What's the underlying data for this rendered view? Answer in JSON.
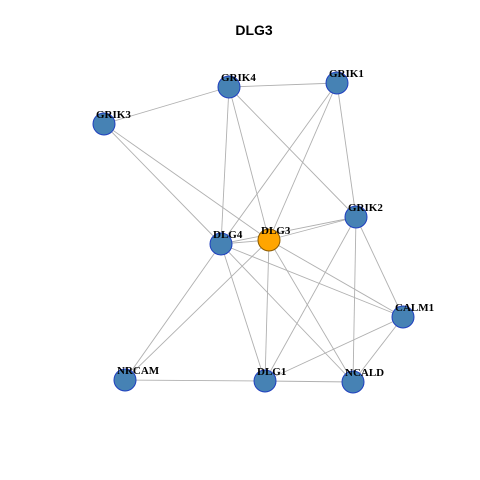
{
  "title": "DLG3",
  "nodes": [
    {
      "label": "GRIK4"
    },
    {
      "label": "GRIK1"
    },
    {
      "label": "GRIK3"
    },
    {
      "label": "GRIK2"
    },
    {
      "label": "DLG4"
    },
    {
      "label": "DLG3"
    },
    {
      "label": "CALM1"
    },
    {
      "label": "NRCAM"
    },
    {
      "label": "DLG1"
    },
    {
      "label": "NCALD"
    }
  ]
}
